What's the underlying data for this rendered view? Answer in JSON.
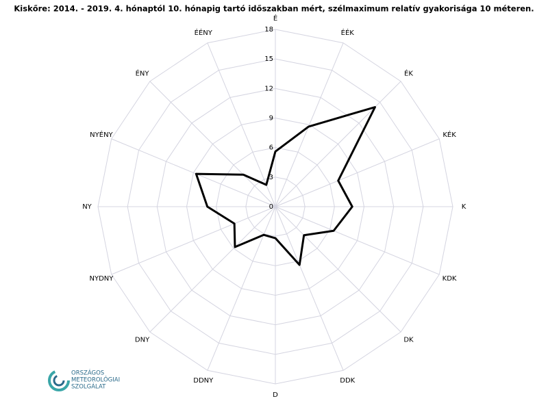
{
  "chart_data": {
    "type": "radar",
    "title": "Kiskőre: 2014. - 2019. 4. hónaptól 10. hónapig tartó időszakban mért, szélmaximum relatív gyakorisága 10 méteren.",
    "categories": [
      "É",
      "ÉÉK",
      "ÉK",
      "KÉK",
      "K",
      "KDK",
      "DK",
      "DDK",
      "D",
      "DDNY",
      "DNY",
      "NYDNY",
      "NY",
      "NYÉNY",
      "ÉNY",
      "ÉÉNY"
    ],
    "values": [
      5.6,
      8.8,
      14.3,
      6.9,
      7.8,
      6.4,
      4.1,
      6.4,
      3.2,
      3.1,
      5.8,
      4.5,
      6.9,
      8.7,
      4.6,
      2.4
    ],
    "color": "#000000",
    "ylim": [
      0,
      18
    ],
    "yticks": [
      0,
      3,
      6,
      9,
      12,
      15,
      18
    ],
    "grid": true
  },
  "logo": {
    "lines": [
      "ORSZÁGOS",
      "METEOROLÓGIAI",
      "SZOLGÁLAT"
    ]
  }
}
